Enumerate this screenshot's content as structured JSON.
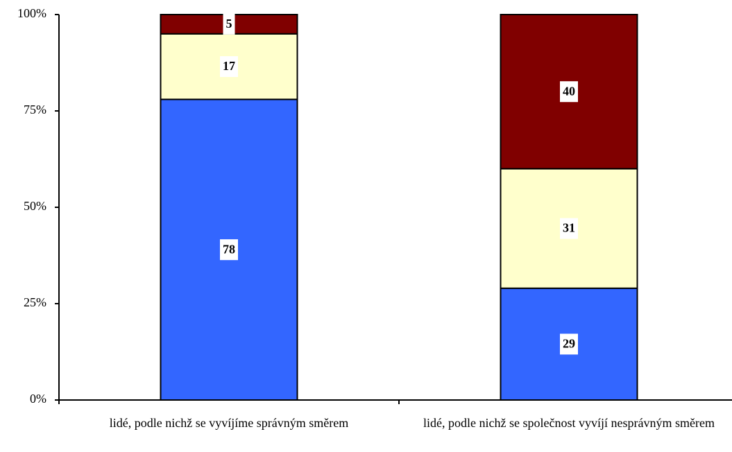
{
  "chart_data": {
    "type": "stacked_bar",
    "categories": [
      "lidé, podle nichž se vyvíjíme správným směrem",
      "lidé, podle nichž se společnost vyvíjí nesprávným směrem"
    ],
    "series": [
      {
        "color": "#3366ff",
        "values": [
          78,
          29
        ]
      },
      {
        "color": "#ffffcc",
        "values": [
          17,
          31
        ]
      },
      {
        "color": "#800000",
        "values": [
          5,
          40
        ]
      }
    ],
    "ylim": [
      0,
      100
    ],
    "yticks": [
      {
        "value": 0,
        "label": "0%"
      },
      {
        "value": 25,
        "label": "25%"
      },
      {
        "value": 50,
        "label": "50%"
      },
      {
        "value": 75,
        "label": "75%"
      },
      {
        "value": 100,
        "label": "100%"
      }
    ]
  }
}
